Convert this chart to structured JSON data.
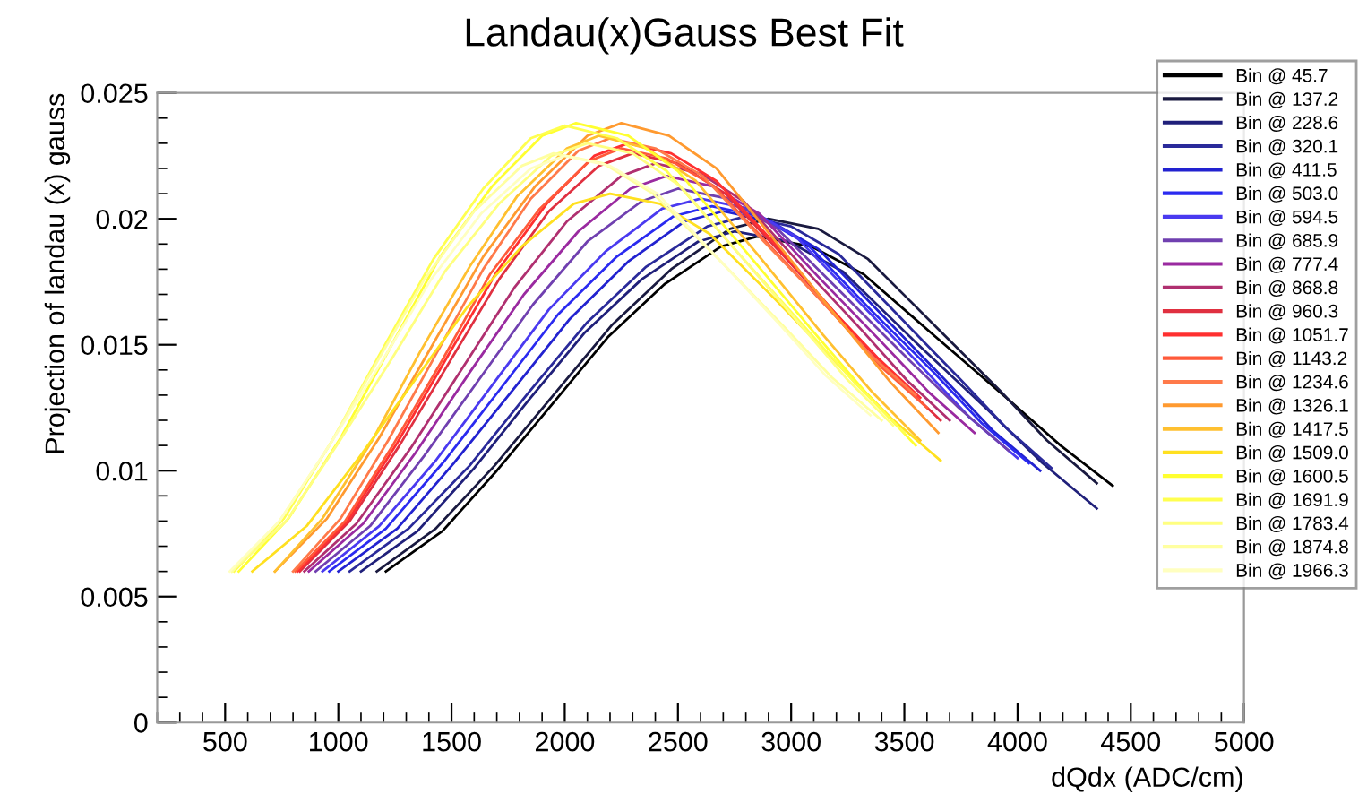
{
  "chart_data": {
    "type": "line",
    "title": "Landau(x)Gauss Best Fit",
    "xlabel": "dQdx (ADC/cm)",
    "ylabel": "Projection of landau (x) gauss",
    "xlim": [
      200,
      5000
    ],
    "ylim": [
      0,
      0.025
    ],
    "xticks": [
      500,
      1000,
      1500,
      2000,
      2500,
      3000,
      3500,
      4000,
      4500,
      5000
    ],
    "yticks": [
      0,
      0.005,
      0.01,
      0.015,
      0.02,
      0.025
    ],
    "grid": false,
    "legend": "top right",
    "marker": "none",
    "line_style": "solid",
    "series": [
      {
        "name": "Bin @ 45.7",
        "color": "#000000",
        "x": [
          1210,
          1460,
          1700,
          1950,
          2190,
          2440,
          2690,
          2850,
          3090,
          3320,
          3640,
          3950,
          4190,
          4420
        ],
        "values": [
          0.006,
          0.0076,
          0.01,
          0.0127,
          0.0153,
          0.0174,
          0.0189,
          0.0193,
          0.0189,
          0.0178,
          0.0153,
          0.0129,
          0.011,
          0.0094
        ]
      },
      {
        "name": "Bin @ 137.2",
        "color": "#1a1a40",
        "x": [
          1170,
          1430,
          1690,
          1950,
          2210,
          2470,
          2730,
          2900,
          3120,
          3340,
          3630,
          3920,
          4130,
          4350
        ],
        "values": [
          0.006,
          0.0077,
          0.0102,
          0.013,
          0.0158,
          0.018,
          0.0196,
          0.02,
          0.0196,
          0.0184,
          0.0158,
          0.0132,
          0.0112,
          0.0095
        ]
      },
      {
        "name": "Bin @ 228.6",
        "color": "#20207a",
        "x": [
          1100,
          1350,
          1600,
          1840,
          2090,
          2340,
          2590,
          2750,
          2990,
          3230,
          3550,
          3870,
          4110,
          4350
        ],
        "values": [
          0.006,
          0.0076,
          0.0101,
          0.0128,
          0.0155,
          0.0176,
          0.0191,
          0.0195,
          0.0191,
          0.0179,
          0.0151,
          0.0124,
          0.0103,
          0.0085
        ]
      },
      {
        "name": "Bin @ 320.1",
        "color": "#2a2a9a",
        "x": [
          1050,
          1310,
          1580,
          1840,
          2100,
          2360,
          2630,
          2800,
          3000,
          3210,
          3480,
          3750,
          3950,
          4150
        ],
        "values": [
          0.006,
          0.0077,
          0.0102,
          0.0131,
          0.0159,
          0.0181,
          0.0197,
          0.0201,
          0.0197,
          0.0186,
          0.0161,
          0.0136,
          0.0117,
          0.0101
        ]
      },
      {
        "name": "Bin @ 411.5",
        "color": "#2222d0",
        "x": [
          1000,
          1260,
          1510,
          1770,
          2020,
          2280,
          2530,
          2700,
          2910,
          3120,
          3400,
          3680,
          3890,
          4100
        ],
        "values": [
          0.006,
          0.0077,
          0.0103,
          0.0132,
          0.016,
          0.0183,
          0.0199,
          0.0203,
          0.0199,
          0.0188,
          0.0162,
          0.0136,
          0.0116,
          0.01
        ]
      },
      {
        "name": "Bin @ 503.0",
        "color": "#2a2af0",
        "x": [
          960,
          1210,
          1470,
          1720,
          1970,
          2230,
          2480,
          2650,
          2860,
          3070,
          3350,
          3630,
          3840,
          4050
        ],
        "values": [
          0.006,
          0.0077,
          0.0104,
          0.0133,
          0.0162,
          0.0185,
          0.0201,
          0.0205,
          0.0201,
          0.019,
          0.0164,
          0.0139,
          0.0119,
          0.0103
        ]
      },
      {
        "name": "Bin @ 594.5",
        "color": "#4a3af0",
        "x": [
          930,
          1180,
          1430,
          1680,
          1930,
          2180,
          2430,
          2600,
          2810,
          3020,
          3300,
          3580,
          3790,
          4000
        ],
        "values": [
          0.006,
          0.0078,
          0.0104,
          0.0134,
          0.0164,
          0.0187,
          0.0204,
          0.0208,
          0.0204,
          0.0193,
          0.0167,
          0.0141,
          0.0121,
          0.0105
        ]
      },
      {
        "name": "Bin @ 685.9",
        "color": "#7040b0",
        "x": [
          900,
          1140,
          1380,
          1620,
          1860,
          2100,
          2340,
          2500,
          2720,
          2940,
          3230,
          3520,
          3740,
          3960
        ],
        "values": [
          0.006,
          0.0078,
          0.0106,
          0.0136,
          0.0166,
          0.0191,
          0.0207,
          0.0212,
          0.0208,
          0.0196,
          0.017,
          0.0144,
          0.0125,
          0.0108
        ]
      },
      {
        "name": "Bin @ 777.4",
        "color": "#9a2aa0",
        "x": [
          870,
          1110,
          1340,
          1580,
          1820,
          2060,
          2290,
          2450,
          2650,
          2860,
          3130,
          3400,
          3610,
          3810
        ],
        "values": [
          0.006,
          0.0079,
          0.0107,
          0.0139,
          0.017,
          0.0195,
          0.0212,
          0.0217,
          0.0213,
          0.0202,
          0.0176,
          0.0151,
          0.0131,
          0.0115
        ]
      },
      {
        "name": "Bin @ 868.8",
        "color": "#b03070",
        "x": [
          850,
          1080,
          1320,
          1550,
          1780,
          2010,
          2250,
          2400,
          2600,
          2790,
          3050,
          3310,
          3510,
          3700
        ],
        "values": [
          0.006,
          0.0079,
          0.0109,
          0.0141,
          0.0173,
          0.0199,
          0.0217,
          0.0222,
          0.0218,
          0.0207,
          0.0181,
          0.0156,
          0.0136,
          0.012
        ]
      },
      {
        "name": "Bin @ 960.3",
        "color": "#e03040",
        "x": [
          830,
          1050,
          1270,
          1490,
          1710,
          1930,
          2150,
          2300,
          2500,
          2710,
          2980,
          3250,
          3460,
          3660
        ],
        "values": [
          0.006,
          0.008,
          0.011,
          0.0143,
          0.0176,
          0.0203,
          0.0221,
          0.0226,
          0.0222,
          0.021,
          0.0184,
          0.0157,
          0.0137,
          0.012
        ]
      },
      {
        "name": "Bin @ 1051.7",
        "color": "#ff3030",
        "x": [
          820,
          1040,
          1260,
          1480,
          1700,
          1920,
          2130,
          2280,
          2470,
          2670,
          2930,
          3180,
          3380,
          3570
        ],
        "values": [
          0.006,
          0.008,
          0.0111,
          0.0145,
          0.0179,
          0.0206,
          0.0225,
          0.023,
          0.0226,
          0.0215,
          0.019,
          0.0164,
          0.0145,
          0.0129
        ]
      },
      {
        "name": "Bin @ 1143.2",
        "color": "#ff5a3a",
        "x": [
          810,
          1030,
          1240,
          1460,
          1670,
          1890,
          2110,
          2250,
          2450,
          2660,
          2930,
          3200,
          3400,
          3600
        ],
        "values": [
          0.006,
          0.008,
          0.011,
          0.0144,
          0.0178,
          0.0204,
          0.0223,
          0.0228,
          0.0224,
          0.0213,
          0.0187,
          0.0161,
          0.0141,
          0.0125
        ]
      },
      {
        "name": "Bin @ 1234.6",
        "color": "#ff7a4a",
        "x": [
          800,
          1010,
          1220,
          1430,
          1640,
          1850,
          2060,
          2200,
          2400,
          2610,
          2880,
          3150,
          3350,
          3550
        ],
        "values": [
          0.006,
          0.0081,
          0.0112,
          0.0146,
          0.018,
          0.0208,
          0.0227,
          0.0232,
          0.0228,
          0.0217,
          0.0191,
          0.0166,
          0.0146,
          0.013
        ]
      },
      {
        "name": "Bin @ 1326.1",
        "color": "#ff9a30",
        "x": [
          720,
          950,
          1180,
          1410,
          1640,
          1870,
          2100,
          2250,
          2460,
          2670,
          2950,
          3230,
          3440,
          3650
        ],
        "values": [
          0.006,
          0.0081,
          0.0113,
          0.0149,
          0.0185,
          0.0213,
          0.0233,
          0.0238,
          0.0233,
          0.022,
          0.0189,
          0.0158,
          0.0135,
          0.0115
        ]
      },
      {
        "name": "Bin @ 1417.5",
        "color": "#ffc030",
        "x": [
          720,
          930,
          1150,
          1360,
          1580,
          1790,
          2010,
          2150,
          2360,
          2580,
          2860,
          3140,
          3360,
          3570
        ],
        "values": [
          0.006,
          0.0081,
          0.0112,
          0.0147,
          0.0181,
          0.0209,
          0.0228,
          0.0233,
          0.0228,
          0.0215,
          0.0185,
          0.0154,
          0.0131,
          0.0112
        ]
      },
      {
        "name": "Bin @ 1509.0",
        "color": "#ffe020",
        "x": [
          620,
          860,
          1090,
          1330,
          1570,
          1810,
          2040,
          2200,
          2420,
          2640,
          2930,
          3220,
          3440,
          3660
        ],
        "values": [
          0.006,
          0.0078,
          0.0105,
          0.0135,
          0.0165,
          0.0189,
          0.0206,
          0.021,
          0.0206,
          0.0194,
          0.0168,
          0.0141,
          0.0121,
          0.0104
        ]
      },
      {
        "name": "Bin @ 1600.5",
        "color": "#ffff30",
        "x": [
          560,
          780,
          1010,
          1230,
          1450,
          1680,
          1900,
          2050,
          2280,
          2500,
          2800,
          3100,
          3330,
          3550
        ],
        "values": [
          0.006,
          0.0081,
          0.0113,
          0.0149,
          0.0185,
          0.0213,
          0.0233,
          0.0238,
          0.0233,
          0.0219,
          0.0187,
          0.0155,
          0.0131,
          0.011
        ]
      },
      {
        "name": "Bin @ 1691.9",
        "color": "#ffff50",
        "x": [
          540,
          760,
          980,
          1200,
          1420,
          1640,
          1850,
          2000,
          2230,
          2450,
          2750,
          3050,
          3280,
          3500
        ],
        "values": [
          0.006,
          0.0081,
          0.0113,
          0.0149,
          0.0184,
          0.0212,
          0.0232,
          0.0237,
          0.0232,
          0.0219,
          0.0188,
          0.0158,
          0.0135,
          0.0115
        ]
      },
      {
        "name": "Bin @ 1783.4",
        "color": "#ffff80",
        "x": [
          530,
          770,
          1000,
          1240,
          1470,
          1710,
          1940,
          2100,
          2300,
          2510,
          2780,
          3050,
          3250,
          3450
        ],
        "values": [
          0.006,
          0.008,
          0.0111,
          0.0145,
          0.0179,
          0.0206,
          0.0225,
          0.023,
          0.0226,
          0.0213,
          0.0185,
          0.0157,
          0.0136,
          0.0118
        ]
      },
      {
        "name": "Bin @ 1874.8",
        "color": "#ffffa0",
        "x": [
          530,
          740,
          960,
          1170,
          1380,
          1600,
          1810,
          1950,
          2170,
          2390,
          2680,
          2970,
          3180,
          3400
        ],
        "values": [
          0.006,
          0.008,
          0.011,
          0.0143,
          0.0176,
          0.0203,
          0.0221,
          0.0226,
          0.0222,
          0.021,
          0.0184,
          0.0157,
          0.0137,
          0.012
        ]
      },
      {
        "name": "Bin @ 1966.3",
        "color": "#ffffc0",
        "x": [
          520,
          740,
          960,
          1190,
          1410,
          1630,
          1850,
          2000,
          2200,
          2410,
          2680,
          2950,
          3150,
          3350
        ],
        "values": [
          0.006,
          0.008,
          0.011,
          0.0143,
          0.0176,
          0.0202,
          0.022,
          0.0225,
          0.0221,
          0.021,
          0.0184,
          0.0158,
          0.0138,
          0.0122
        ]
      }
    ]
  }
}
